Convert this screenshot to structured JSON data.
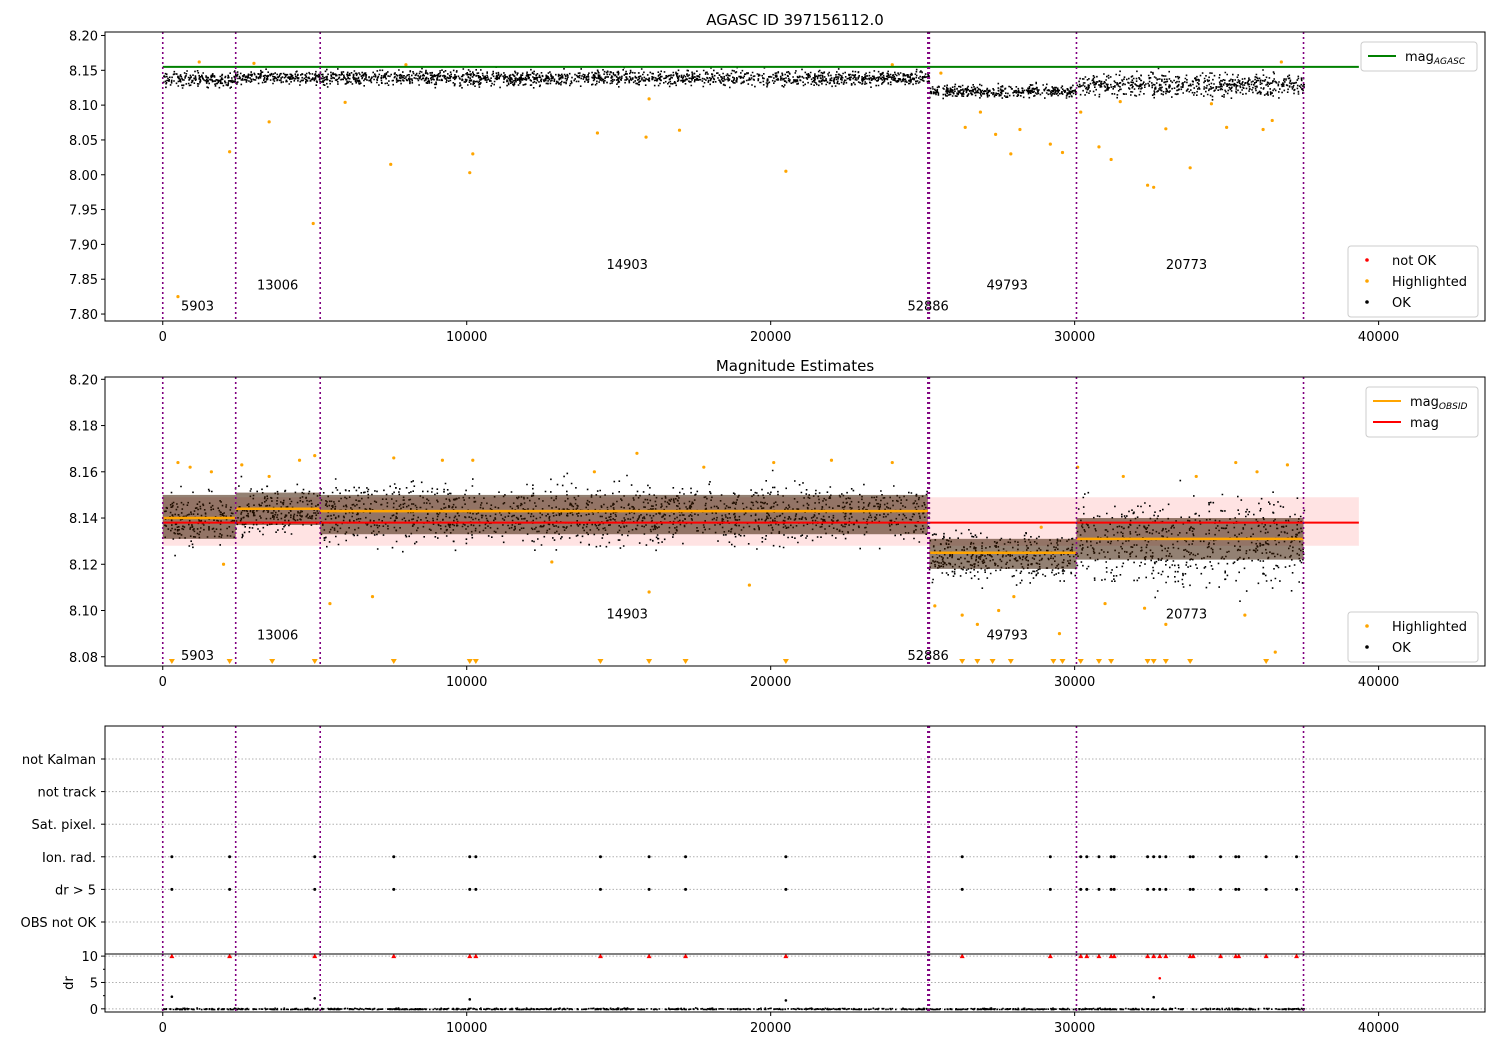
{
  "chart_data": [
    {
      "type": "scatter",
      "title": "AGASC ID 397156112.0",
      "xlim": [
        -1900,
        43500
      ],
      "ylim": [
        7.79,
        8.205
      ],
      "x_ticks": [
        0,
        10000,
        20000,
        30000,
        40000
      ],
      "y_ticks": [
        7.8,
        7.85,
        7.9,
        7.95,
        8.0,
        8.05,
        8.1,
        8.15,
        8.2
      ],
      "grid": false,
      "obsid_boundaries": [
        0,
        2400,
        5180,
        25170,
        25220,
        30060,
        37530
      ],
      "obsid_labels": [
        {
          "label": "5903",
          "x": 600,
          "y": 7.805
        },
        {
          "label": "13006",
          "x": 3100,
          "y": 7.835
        },
        {
          "label": "14903",
          "x": 14600,
          "y": 7.865
        },
        {
          "label": "52886",
          "x": 24500,
          "y": 7.805
        },
        {
          "label": "49793",
          "x": 27100,
          "y": 7.835
        },
        {
          "label": "20773",
          "x": 33000,
          "y": 7.865
        }
      ],
      "series": [
        {
          "name": "mag_AGASC",
          "kind": "hline",
          "y": 8.155,
          "x_range": [
            0,
            39350
          ],
          "color": "#008000"
        }
      ],
      "dense_segments": [
        {
          "x": [
            0,
            2400
          ],
          "center": 8.138,
          "spread": 0.012
        },
        {
          "x": [
            2400,
            5180
          ],
          "center": 8.141,
          "spread": 0.01
        },
        {
          "x": [
            5180,
            25200
          ],
          "center": 8.14,
          "spread": 0.012
        },
        {
          "x": [
            25200,
            30060
          ],
          "center": 8.121,
          "spread": 0.01
        },
        {
          "x": [
            30060,
            37530
          ],
          "center": 8.13,
          "spread": 0.018
        }
      ],
      "highlighted_points": [
        [
          500,
          7.825
        ],
        [
          2200,
          8.033
        ],
        [
          3500,
          8.076
        ],
        [
          4950,
          7.93
        ],
        [
          7500,
          8.015
        ],
        [
          10100,
          8.003
        ],
        [
          10200,
          8.03
        ],
        [
          14300,
          8.06
        ],
        [
          15900,
          8.054
        ],
        [
          17000,
          8.064
        ],
        [
          20500,
          8.005
        ],
        [
          26400,
          8.068
        ],
        [
          26900,
          8.09
        ],
        [
          27400,
          8.058
        ],
        [
          27900,
          8.03
        ],
        [
          28200,
          8.065
        ],
        [
          29200,
          8.044
        ],
        [
          29600,
          8.032
        ],
        [
          30200,
          8.09
        ],
        [
          30800,
          8.04
        ],
        [
          31200,
          8.022
        ],
        [
          32400,
          7.985
        ],
        [
          32600,
          7.982
        ],
        [
          33000,
          8.066
        ],
        [
          33800,
          8.01
        ],
        [
          35000,
          8.068
        ],
        [
          36200,
          8.065
        ],
        [
          36500,
          8.078
        ],
        [
          1200,
          8.162
        ],
        [
          3000,
          8.16
        ],
        [
          6000,
          8.104
        ],
        [
          8000,
          8.158
        ],
        [
          16000,
          8.109
        ],
        [
          24000,
          8.158
        ],
        [
          25600,
          8.146
        ],
        [
          31500,
          8.105
        ],
        [
          34500,
          8.102
        ],
        [
          36800,
          8.162
        ]
      ],
      "legend_1": {
        "entries": [
          {
            "label": "mag",
            "subscript": "AGASC",
            "color": "#008000"
          }
        ],
        "position": "upper right"
      },
      "legend_2": {
        "entries": [
          {
            "label": "not OK",
            "color": "#ff0000"
          },
          {
            "label": "Highlighted",
            "color": "#ffa500"
          },
          {
            "label": "OK",
            "color": "#000000"
          }
        ],
        "position": "lower right"
      }
    },
    {
      "type": "scatter",
      "title": "Magnitude Estimates",
      "xlim": [
        -1900,
        43500
      ],
      "ylim": [
        8.076,
        8.201
      ],
      "x_ticks": [
        0,
        10000,
        20000,
        30000,
        40000
      ],
      "y_ticks": [
        8.08,
        8.1,
        8.12,
        8.14,
        8.16,
        8.18,
        8.2
      ],
      "grid": false,
      "obsid_boundaries": [
        0,
        2400,
        5180,
        25170,
        25220,
        30060,
        37530
      ],
      "obsid_labels": [
        {
          "label": "5903",
          "x": 600,
          "y": 8.0785
        },
        {
          "label": "13006",
          "x": 3100,
          "y": 8.0875
        },
        {
          "label": "14903",
          "x": 14600,
          "y": 8.0965
        },
        {
          "label": "52886",
          "x": 24500,
          "y": 8.0785
        },
        {
          "label": "49793",
          "x": 27100,
          "y": 8.0875
        },
        {
          "label": "20773",
          "x": 33000,
          "y": 8.0965
        }
      ],
      "mag": {
        "value": 8.138,
        "band": [
          8.128,
          8.149
        ],
        "x_range": [
          0,
          39350
        ],
        "color": "#ff0000"
      },
      "mag_obsid": [
        {
          "x": [
            0,
            2400
          ],
          "value": 8.14,
          "band": [
            8.131,
            8.15
          ]
        },
        {
          "x": [
            2400,
            5180
          ],
          "value": 8.144,
          "band": [
            8.137,
            8.151
          ]
        },
        {
          "x": [
            5180,
            25170
          ],
          "value": 8.143,
          "band": [
            8.133,
            8.15
          ]
        },
        {
          "x": [
            25220,
            30060
          ],
          "value": 8.125,
          "band": [
            8.118,
            8.131
          ]
        },
        {
          "x": [
            30060,
            37530
          ],
          "value": 8.131,
          "band": [
            8.122,
            8.14
          ]
        }
      ],
      "dense_segments": [
        {
          "x": [
            0,
            2400
          ],
          "center": 8.14,
          "spread": 0.013
        },
        {
          "x": [
            2400,
            5180
          ],
          "center": 8.144,
          "spread": 0.011
        },
        {
          "x": [
            5180,
            25200
          ],
          "center": 8.142,
          "spread": 0.014
        },
        {
          "x": [
            25200,
            30060
          ],
          "center": 8.124,
          "spread": 0.011
        },
        {
          "x": [
            30060,
            37530
          ],
          "center": 8.13,
          "spread": 0.022
        }
      ],
      "highlighted_points": [
        [
          500,
          8.164
        ],
        [
          900,
          8.162
        ],
        [
          1600,
          8.16
        ],
        [
          2000,
          8.12
        ],
        [
          2600,
          8.163
        ],
        [
          3500,
          8.158
        ],
        [
          4500,
          8.165
        ],
        [
          5000,
          8.167
        ],
        [
          5500,
          8.103
        ],
        [
          6900,
          8.106
        ],
        [
          7600,
          8.166
        ],
        [
          9200,
          8.165
        ],
        [
          10200,
          8.165
        ],
        [
          12800,
          8.121
        ],
        [
          14200,
          8.16
        ],
        [
          15600,
          8.168
        ],
        [
          16000,
          8.108
        ],
        [
          17800,
          8.162
        ],
        [
          19300,
          8.111
        ],
        [
          20100,
          8.164
        ],
        [
          22000,
          8.165
        ],
        [
          24000,
          8.164
        ],
        [
          25400,
          8.102
        ],
        [
          26300,
          8.098
        ],
        [
          26800,
          8.094
        ],
        [
          27500,
          8.1
        ],
        [
          28000,
          8.106
        ],
        [
          28900,
          8.136
        ],
        [
          29500,
          8.09
        ],
        [
          30100,
          8.162
        ],
        [
          31000,
          8.103
        ],
        [
          31600,
          8.158
        ],
        [
          32300,
          8.101
        ],
        [
          33000,
          8.094
        ],
        [
          34000,
          8.158
        ],
        [
          35300,
          8.164
        ],
        [
          35600,
          8.098
        ],
        [
          36000,
          8.16
        ],
        [
          36600,
          8.082
        ],
        [
          37000,
          8.163
        ]
      ],
      "clipped_markers_x": [
        300,
        2200,
        3600,
        5000,
        7600,
        10100,
        10300,
        14400,
        16000,
        17200,
        20500,
        26300,
        26800,
        27300,
        27900,
        29300,
        29600,
        30200,
        30800,
        31200,
        32400,
        32600,
        33000,
        33800,
        36300
      ],
      "legend_1": {
        "entries": [
          {
            "label": "mag",
            "subscript": "OBSID",
            "color": "#ffa500"
          },
          {
            "label": "mag",
            "subscript": "",
            "color": "#ff0000"
          }
        ],
        "position": "upper right"
      },
      "legend_2": {
        "entries": [
          {
            "label": "Highlighted",
            "color": "#ffa500"
          },
          {
            "label": "OK",
            "color": "#000000"
          }
        ],
        "position": "lower right"
      }
    },
    {
      "type": "scatter",
      "title": "",
      "xlim": [
        -1900,
        43500
      ],
      "x_ticks": [
        0,
        10000,
        20000,
        30000,
        40000
      ],
      "flag_rows": [
        "not Kalman",
        "not track",
        "Sat. pixel.",
        "Ion. rad.",
        "dr > 5",
        "OBS not OK"
      ],
      "obsid_boundaries": [
        0,
        2400,
        5180,
        25170,
        25220,
        30060,
        37530
      ],
      "flag_events_x": [
        300,
        2200,
        5000,
        7600,
        10100,
        10300,
        14400,
        16000,
        17200,
        20500,
        26300,
        29200,
        30200,
        30400,
        30800,
        31200,
        31300,
        32400,
        32600,
        32800,
        33000,
        33800,
        33900,
        34800,
        35300,
        35400,
        36300,
        37300
      ],
      "dr": {
        "ylabel": "dr",
        "ylim": [
          -0.6,
          10.4
        ],
        "y_ticks": [
          0,
          5,
          10
        ],
        "grid": true,
        "clip_value": 10,
        "outliers": [
          [
            300,
            2.3
          ],
          [
            5000,
            2.0
          ],
          [
            10100,
            1.8
          ],
          [
            20500,
            1.6
          ],
          [
            32600,
            2.2
          ],
          [
            32800,
            5.8
          ]
        ],
        "clipped_x": [
          300,
          2200,
          5000,
          7600,
          10100,
          10300,
          14400,
          16000,
          17200,
          20500,
          26300,
          29200,
          30200,
          30400,
          30800,
          31200,
          31300,
          32400,
          32600,
          32800,
          33000,
          33800,
          33900,
          34800,
          35300,
          35400,
          36300,
          37300
        ]
      }
    }
  ],
  "colors": {
    "ok": "#000000",
    "highlighted": "#ffa500",
    "not_ok": "#ff0000",
    "agasc": "#008000",
    "boundary": "#800080",
    "band": "#ffc0c0"
  }
}
